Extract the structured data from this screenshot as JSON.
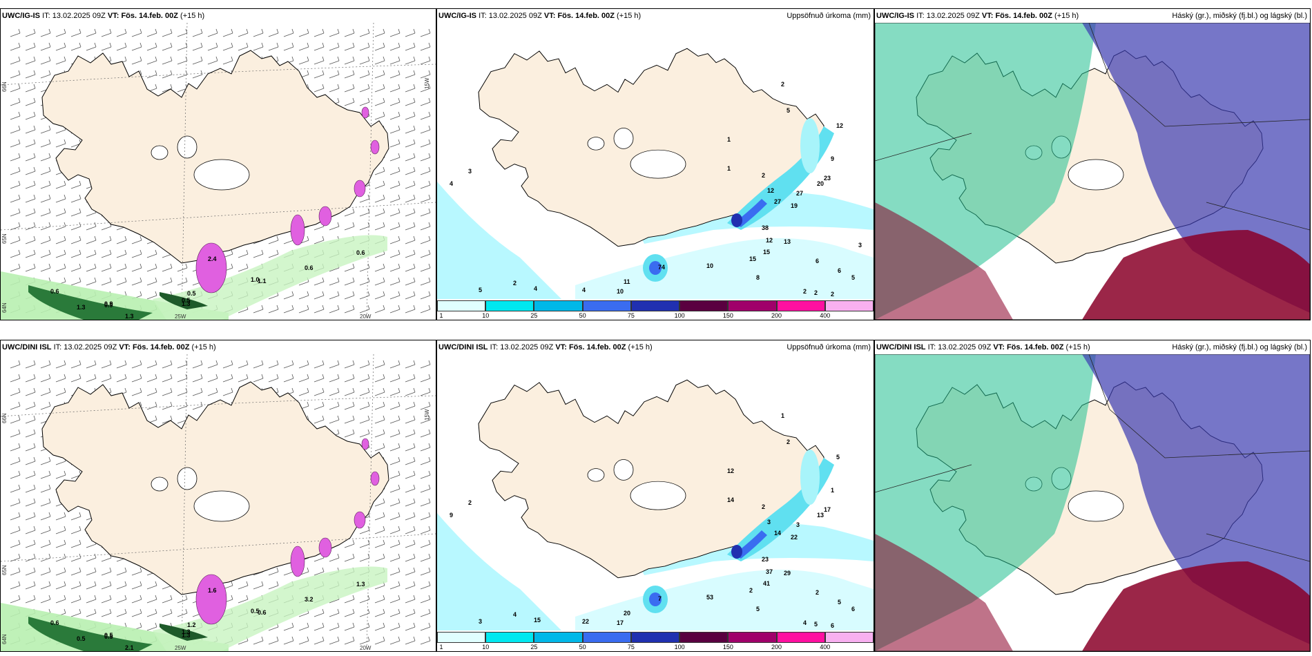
{
  "panels": [
    {
      "id": "p1",
      "model": "UWC/IG-IS",
      "it_label": "IT:",
      "it": "13.02.2025 09Z",
      "vt_label": "VT:",
      "vt": "Fös. 14.feb. 00Z",
      "lead": "(+15 h)",
      "right": "",
      "type": "wind",
      "labels": [
        "2.4",
        "0.9",
        "1.0",
        "1.1",
        "0.5",
        "0.6",
        "0.6",
        "0.6",
        "1.3",
        "0.9",
        "1.3",
        "0.5",
        "1.3"
      ],
      "axis": [
        "66N",
        "65N",
        "64N",
        "25W",
        "20W",
        "15W"
      ]
    },
    {
      "id": "p2",
      "model": "UWC/IG-IS",
      "it_label": "IT:",
      "it": "13.02.2025 09Z",
      "vt_label": "VT:",
      "vt": "Fös. 14.feb. 00Z",
      "lead": "(+15 h)",
      "right": "Uppsöfnuð úrkoma (mm)",
      "type": "precip",
      "labels": [
        "2",
        "5",
        "12",
        "1",
        "9",
        "1",
        "2",
        "23",
        "12",
        "20",
        "27",
        "27",
        "19",
        "38",
        "12",
        "13",
        "15",
        "15",
        "10",
        "74",
        "11",
        "10",
        "4",
        "4",
        "2",
        "5",
        "3",
        "4",
        "6",
        "6",
        "8",
        "5",
        "2",
        "2",
        "2",
        "3"
      ]
    },
    {
      "id": "p3",
      "model": "UWC/IG-IS",
      "it_label": "IT:",
      "it": "13.02.2025 09Z",
      "vt_label": "VT:",
      "vt": "Fös. 14.feb. 00Z",
      "lead": "(+15 h)",
      "right": "Háský (gr.), miðský (fj.bl.) og lágský (bl.)",
      "type": "cloud"
    },
    {
      "id": "p4",
      "model": "UWC/DINI ISL",
      "it_label": "IT:",
      "it": "13.02.2025 09Z",
      "vt_label": "VT:",
      "vt": "Fös. 14.feb. 00Z",
      "lead": "(+15 h)",
      "right": "",
      "type": "wind",
      "labels": [
        "1.6",
        "0.5",
        "0.5",
        "0.6",
        "1.2",
        "0.6",
        "3.2",
        "1.3",
        "0.5",
        "0.5",
        "2.1",
        "1.3",
        "1.3"
      ],
      "axis": [
        "66N",
        "65N",
        "64N",
        "25W",
        "20W",
        "15W"
      ]
    },
    {
      "id": "p5",
      "model": "UWC/DINI ISL",
      "it_label": "IT:",
      "it": "13.02.2025 09Z",
      "vt_label": "VT:",
      "vt": "Fös. 14.feb. 00Z",
      "lead": "(+15 h)",
      "right": "Uppsöfnuð úrkoma (mm)",
      "type": "precip",
      "labels": [
        "1",
        "2",
        "5",
        "12",
        "1",
        "14",
        "2",
        "17",
        "3",
        "13",
        "14",
        "3",
        "22",
        "23",
        "37",
        "29",
        "41",
        "2",
        "53",
        "7",
        "20",
        "17",
        "22",
        "15",
        "4",
        "3",
        "2",
        "9",
        "2",
        "5",
        "5",
        "6",
        "4",
        "5",
        "6"
      ]
    },
    {
      "id": "p6",
      "model": "UWC/DINI ISL",
      "it_label": "IT:",
      "it": "13.02.2025 09Z",
      "vt_label": "VT:",
      "vt": "Fös. 14.feb. 00Z",
      "lead": "(+15 h)",
      "right": "Háský (gr.), miðský (fj.bl.) og lágský (bl.)",
      "type": "cloud"
    }
  ],
  "colorbar": {
    "ticks": [
      "1",
      "10",
      "25",
      "50",
      "75",
      "100",
      "150",
      "200",
      "400"
    ],
    "colors": [
      "#e0ffff",
      "#00e8f0",
      "#00b8e8",
      "#3a6cf0",
      "#2030b0",
      "#5a0040",
      "#a0006a",
      "#ff10a0",
      "#f8b0f0"
    ]
  },
  "colors": {
    "land": "#fbefdf",
    "sea": "#ffffff",
    "cloud_high": "#20c090",
    "cloud_mid": "#3c3cb0",
    "cloud_low": "#8a0028",
    "precip_light": "#b8f8ff",
    "snow": "#e060e0"
  }
}
